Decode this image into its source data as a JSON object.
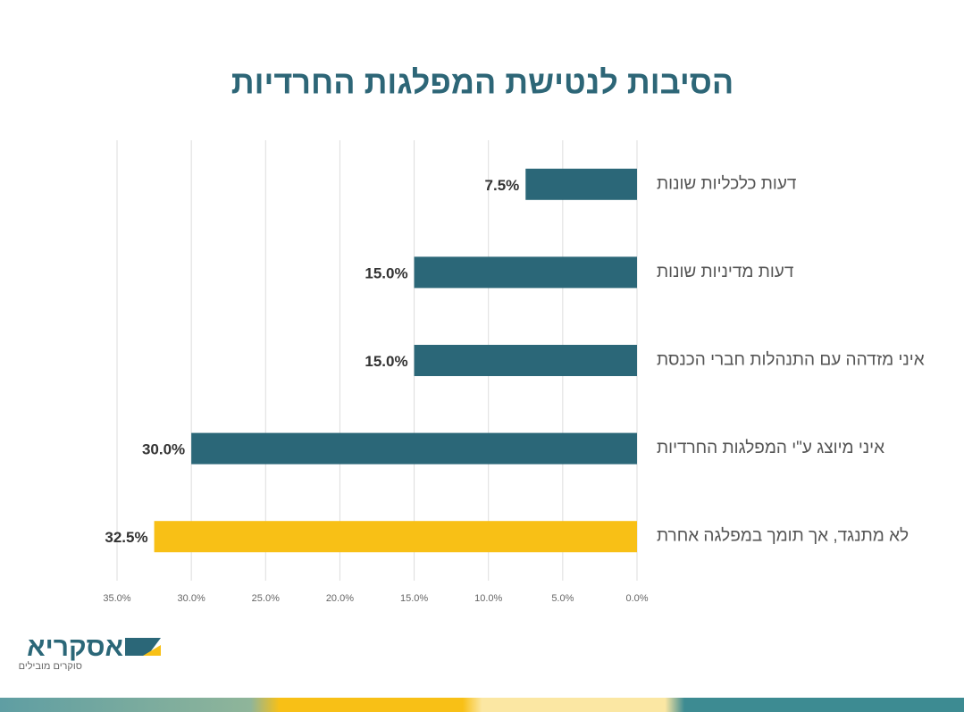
{
  "chart_data": {
    "type": "hbar",
    "title": "הסיבות לנטישת המפלגות החרדיות",
    "categories": [
      "דעות כלכליות  שונות",
      "דעות מדיניות שונות",
      "איני מזדהה עם התנהלות חברי הכנסת",
      "איני מיוצג ע\"י המפלגות החרדיות",
      "לא מתנגד, אך תומך במפלגה אחרת"
    ],
    "values": [
      7.5,
      15.0,
      15.0,
      30.0,
      32.5
    ],
    "value_labels": [
      "7.5%",
      "15.0%",
      "15.0%",
      "30.0%",
      "32.5%"
    ],
    "colors": [
      "#2b6778",
      "#2b6778",
      "#2b6778",
      "#2b6778",
      "#f8c016"
    ],
    "xlim": [
      35,
      0
    ],
    "xticks": [
      {
        "value": 35,
        "label": "35.0%"
      },
      {
        "value": 30,
        "label": "30.0%"
      },
      {
        "value": 25,
        "label": "25.0%"
      },
      {
        "value": 20,
        "label": "20.0%"
      },
      {
        "value": 15,
        "label": "15.0%"
      },
      {
        "value": 10,
        "label": "10.0%"
      },
      {
        "value": 5,
        "label": "5.0%"
      },
      {
        "value": 0,
        "label": "0.0%"
      }
    ],
    "grid": true
  },
  "logo": {
    "name": "אסקריא",
    "tagline": "סוקרים מובילים"
  }
}
